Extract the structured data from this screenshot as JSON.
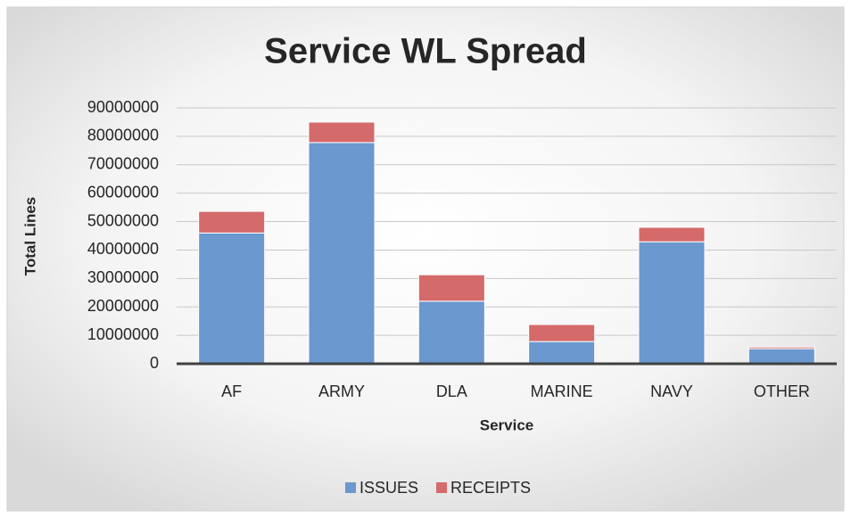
{
  "chart_data": {
    "type": "stacked_bar",
    "title": "Service WL Spread",
    "x_label": "Service",
    "y_label": "Total Lines",
    "categories": [
      "AF",
      "ARMY",
      "DLA",
      "MARINE",
      "NAVY",
      "OTHER"
    ],
    "series": [
      {
        "name": "ISSUES",
        "color": "#6a98cf",
        "values": [
          46000000,
          77800000,
          22000000,
          7800000,
          42900000,
          5300000
        ]
      },
      {
        "name": "RECEIPTS",
        "color": "#d46a6a",
        "values": [
          7600000,
          7200000,
          9300000,
          6000000,
          5100000,
          600000
        ]
      }
    ],
    "ylim": [
      0,
      90000000
    ],
    "yticks": [
      0,
      10000000,
      20000000,
      30000000,
      40000000,
      50000000,
      60000000,
      70000000,
      80000000,
      90000000
    ],
    "grid": true,
    "legend": "bottom"
  }
}
